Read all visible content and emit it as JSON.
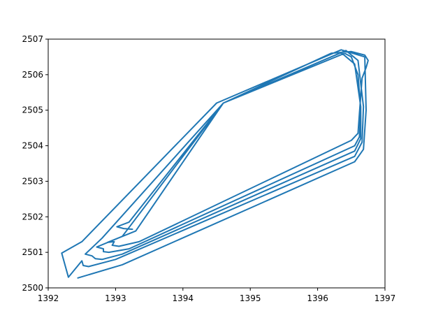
{
  "chart_data": {
    "type": "line",
    "title": "",
    "xlabel": "",
    "ylabel": "",
    "xlim": [
      1392,
      1397
    ],
    "ylim": [
      2500,
      2507
    ],
    "xticks": [
      1392,
      1393,
      1394,
      1395,
      1396,
      1397
    ],
    "yticks": [
      2500,
      2501,
      2502,
      2503,
      2504,
      2505,
      2506,
      2507
    ],
    "grid": false,
    "legend": "none",
    "series": [
      {
        "color": "#1f77b4",
        "x": [
          1392.44,
          1393.1,
          1396.55,
          1396.68,
          1396.72,
          1396.7,
          1396.35,
          1394.5,
          1392.5,
          1392.2,
          1392.3,
          1392.5,
          1392.52,
          1392.6,
          1393.0,
          1396.55,
          1396.66,
          1396.68,
          1396.6,
          1396.42,
          1394.6,
          1392.8,
          1392.55,
          1392.65,
          1392.7,
          1392.8,
          1393.1,
          1396.55,
          1396.64,
          1396.64,
          1396.55,
          1396.35,
          1394.6,
          1393.1,
          1392.72,
          1392.82,
          1392.82,
          1392.9,
          1393.2,
          1396.55,
          1396.62,
          1396.64,
          1396.6,
          1396.5,
          1396.4,
          1394.6,
          1393.3,
          1392.88,
          1392.98,
          1392.95,
          1393.05,
          1393.35,
          1396.5,
          1396.6,
          1396.62,
          1396.66,
          1396.72,
          1396.75,
          1396.7,
          1396.5,
          1396.2,
          1394.6,
          1393.2,
          1393.02,
          1393.12,
          1393.25
        ],
        "y": [
          2500.28,
          2500.65,
          2503.55,
          2503.9,
          2505.0,
          2506.5,
          2506.7,
          2505.2,
          2501.3,
          2500.98,
          2500.3,
          2500.76,
          2500.63,
          2500.6,
          2500.8,
          2503.7,
          2504.1,
          2505.1,
          2506.4,
          2506.68,
          2505.2,
          2501.4,
          2500.95,
          2500.9,
          2500.82,
          2500.8,
          2500.95,
          2503.85,
          2504.2,
          2505.1,
          2506.3,
          2506.62,
          2505.2,
          2501.45,
          2501.15,
          2501.1,
          2501.02,
          2501.0,
          2501.1,
          2504.0,
          2504.25,
          2505.0,
          2506.0,
          2506.5,
          2506.6,
          2505.2,
          2501.6,
          2501.28,
          2501.3,
          2501.2,
          2501.17,
          2501.3,
          2504.15,
          2504.35,
          2504.9,
          2505.9,
          2506.2,
          2506.4,
          2506.55,
          2506.65,
          2506.6,
          2505.2,
          2501.85,
          2501.72,
          2501.67,
          2501.65
        ]
      }
    ]
  }
}
